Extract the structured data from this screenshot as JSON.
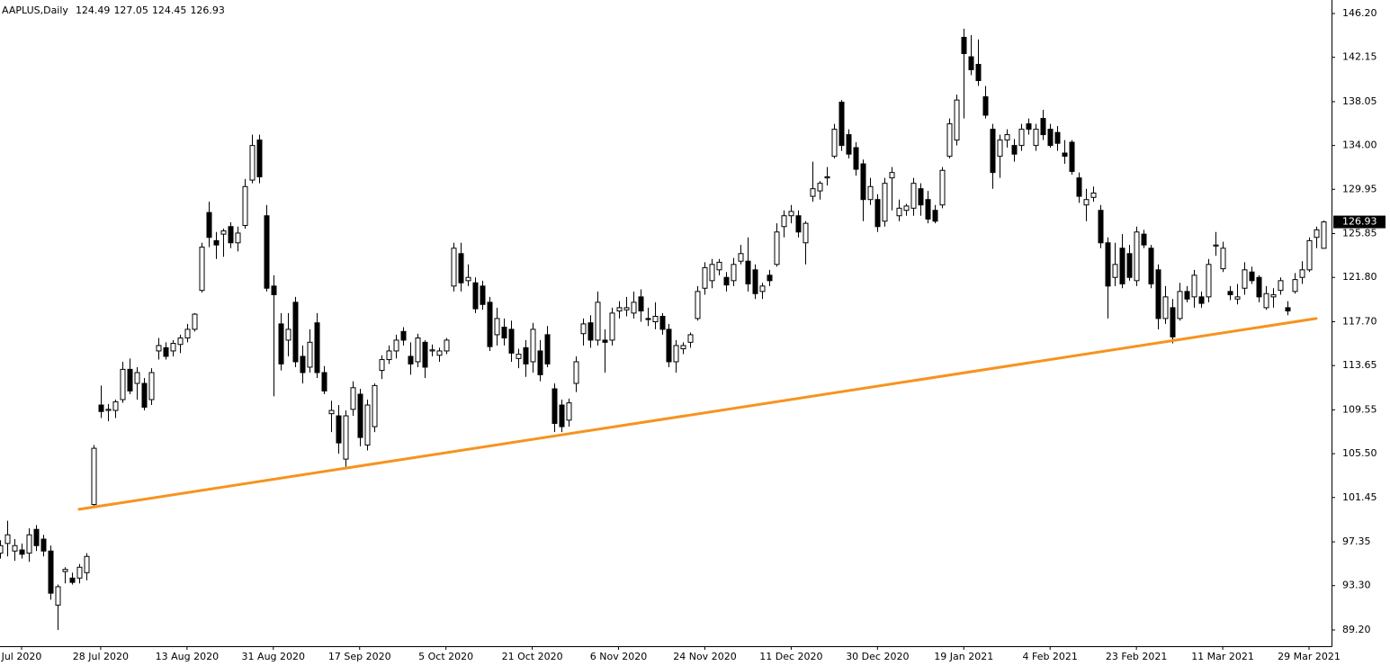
{
  "chart_data": {
    "type": "candlestick",
    "title": "AAPLUS,Daily",
    "categories": [
      null,
      null,
      null,
      "Jul 2020",
      null,
      null,
      null,
      null,
      null,
      null,
      null,
      null,
      null,
      null,
      "28 Jul 2020",
      null,
      null,
      null,
      null,
      null,
      null,
      null,
      null,
      null,
      null,
      null,
      "13 Aug 2020",
      null,
      null,
      null,
      null,
      null,
      null,
      null,
      null,
      null,
      null,
      null,
      "31 Aug 2020",
      null,
      null,
      null,
      null,
      null,
      null,
      null,
      null,
      null,
      null,
      null,
      "17 Sep 2020",
      null,
      null,
      null,
      null,
      null,
      null,
      null,
      null,
      null,
      null,
      null,
      "5 Oct 2020",
      null,
      null,
      null,
      null,
      null,
      null,
      null,
      null,
      null,
      null,
      null,
      "21 Oct 2020",
      null,
      null,
      null,
      null,
      null,
      null,
      null,
      null,
      null,
      null,
      null,
      "6 Nov 2020",
      null,
      null,
      null,
      null,
      null,
      null,
      null,
      null,
      null,
      null,
      null,
      "24 Nov 2020",
      null,
      null,
      null,
      null,
      null,
      null,
      null,
      null,
      null,
      null,
      null,
      "11 Dec 2020",
      null,
      null,
      null,
      null,
      null,
      null,
      null,
      null,
      null,
      null,
      null,
      "30 Dec 2020",
      null,
      null,
      null,
      null,
      null,
      null,
      null,
      null,
      null,
      null,
      null,
      "19 Jan 2021",
      null,
      null,
      null,
      null,
      null,
      null,
      null,
      null,
      null,
      null,
      null,
      "4 Feb 2021",
      null,
      null,
      null,
      null,
      null,
      null,
      null,
      null,
      null,
      null,
      null,
      "23 Feb 2021",
      null,
      null,
      null,
      null,
      null,
      null,
      null,
      null,
      null,
      null,
      null,
      "11 Mar 2021",
      null,
      null,
      null,
      null,
      null,
      null,
      null,
      null,
      null,
      null,
      null,
      "29 Mar 2021",
      null,
      null
    ],
    "open": [
      96.3,
      97.2,
      96.5,
      96.6,
      96.3,
      98.5,
      97.6,
      96.5,
      91.5,
      94.6,
      94.0,
      94.0,
      94.5,
      100.8,
      110.0,
      109.5,
      109.5,
      110.5,
      113.3,
      112.0,
      112.0,
      110.5,
      115.0,
      115.3,
      115.0,
      115.6,
      116.2,
      117.0,
      120.6,
      127.8,
      125.2,
      125.8,
      126.5,
      125.0,
      126.6,
      130.8,
      134.5,
      127.5,
      121.0,
      117.5,
      116.0,
      119.5,
      114.5,
      113.5,
      117.6,
      113.0,
      109.2,
      109.0,
      105.0,
      109.6,
      111.0,
      106.3,
      108.0,
      113.2,
      114.2,
      115.0,
      116.8,
      114.5,
      114.0,
      115.8,
      115.0,
      114.6,
      115.0,
      121.0,
      124.0,
      121.5,
      121.3,
      121.0,
      119.5,
      116.5,
      117.2,
      117.0,
      114.3,
      115.3,
      114.0,
      115.0,
      116.5,
      111.5,
      110.0,
      108.6,
      112.0,
      116.6,
      117.6,
      116.0,
      116.0,
      116.0,
      118.7,
      118.8,
      118.5,
      120.0,
      118.0,
      117.7,
      118.2,
      117.0,
      114.0,
      115.2,
      115.8,
      118.0,
      120.8,
      121.5,
      122.5,
      121.8,
      121.5,
      123.3,
      123.3,
      122.5,
      120.5,
      122.0,
      123.0,
      126.5,
      127.5,
      127.5,
      125.0,
      129.3,
      129.8,
      131.0,
      133.0,
      138.0,
      135.0,
      133.8,
      132.3,
      129.0,
      129.0,
      127.0,
      131.0,
      127.5,
      128.0,
      128.2,
      130.0,
      129.0,
      128.0,
      128.5,
      133.0,
      134.5,
      144.0,
      142.2,
      141.5,
      138.5,
      135.5,
      133.0,
      134.5,
      134.0,
      134.0,
      136.0,
      134.0,
      136.5,
      135.5,
      135.2,
      133.3,
      134.3,
      131.0,
      128.5,
      129.2,
      128.0,
      125.0,
      121.8,
      124.5,
      124.0,
      121.5,
      125.8,
      124.5,
      122.5,
      118.0,
      119.0,
      118.0,
      120.5,
      120.0,
      120.0,
      120.0,
      124.7,
      122.6,
      120.5,
      119.8,
      120.8,
      122.3,
      121.8,
      119.0,
      120.0,
      120.6,
      119.0,
      120.5,
      121.8,
      122.5,
      125.5,
      124.49
    ],
    "high": [
      97.5,
      99.3,
      97.6,
      97.2,
      98.6,
      98.9,
      98.0,
      97.0,
      93.4,
      95.0,
      94.5,
      95.3,
      96.3,
      106.3,
      111.8,
      110.1,
      110.5,
      114.0,
      114.3,
      113.5,
      112.5,
      113.4,
      116.2,
      115.8,
      116.0,
      116.5,
      117.5,
      118.5,
      125.0,
      128.8,
      126.0,
      126.3,
      126.9,
      126.5,
      130.9,
      135.0,
      135.0,
      128.5,
      122.0,
      118.5,
      118.5,
      120.0,
      115.5,
      117.0,
      118.5,
      113.6,
      110.4,
      110.0,
      109.5,
      112.2,
      111.5,
      110.5,
      112.0,
      114.6,
      115.5,
      116.5,
      117.2,
      115.8,
      116.6,
      116.0,
      115.6,
      115.3,
      116.2,
      125.0,
      125.0,
      123.0,
      121.8,
      121.5,
      120.0,
      119.0,
      118.0,
      117.8,
      115.2,
      116.0,
      117.6,
      116.0,
      117.3,
      112.0,
      110.5,
      110.6,
      114.5,
      118.0,
      118.3,
      120.5,
      117.0,
      119.0,
      119.6,
      120.0,
      120.5,
      120.7,
      119.0,
      119.5,
      118.5,
      117.5,
      116.0,
      115.8,
      116.7,
      121.0,
      123.2,
      123.5,
      123.5,
      122.3,
      123.6,
      124.8,
      125.5,
      123.0,
      121.3,
      122.5,
      126.8,
      128.0,
      128.5,
      128.0,
      127.0,
      132.5,
      130.7,
      132.0,
      136.0,
      138.2,
      135.5,
      134.3,
      132.7,
      131.0,
      129.5,
      131.0,
      132.0,
      129.0,
      128.6,
      131.0,
      130.5,
      129.8,
      128.5,
      132.0,
      136.5,
      138.7,
      144.8,
      144.2,
      143.8,
      139.5,
      136.0,
      135.0,
      135.5,
      134.6,
      136.0,
      136.5,
      136.0,
      137.3,
      136.0,
      135.8,
      134.5,
      134.5,
      131.5,
      130.0,
      130.2,
      128.5,
      125.5,
      125.0,
      125.8,
      124.8,
      126.5,
      126.2,
      124.8,
      123.0,
      121.0,
      119.8,
      121.3,
      121.0,
      122.5,
      120.5,
      123.5,
      126.0,
      125.1,
      121.0,
      121.2,
      123.2,
      122.8,
      122.0,
      121.0,
      120.8,
      121.8,
      119.6,
      122.2,
      123.3,
      125.5,
      126.5,
      127.05
    ],
    "low": [
      95.8,
      96.0,
      95.6,
      95.8,
      95.5,
      96.5,
      96.0,
      92.0,
      89.2,
      93.5,
      93.4,
      93.5,
      93.8,
      100.5,
      108.8,
      108.5,
      108.8,
      110.2,
      111.0,
      110.5,
      109.5,
      110.0,
      114.2,
      114.2,
      114.5,
      114.8,
      115.8,
      116.8,
      120.4,
      124.6,
      123.5,
      123.7,
      124.5,
      124.2,
      126.3,
      130.5,
      130.5,
      120.5,
      110.8,
      113.2,
      114.5,
      113.5,
      112.0,
      113.0,
      112.5,
      111.0,
      107.5,
      105.5,
      104.3,
      109.0,
      106.2,
      105.8,
      107.5,
      112.4,
      113.8,
      114.3,
      115.5,
      112.8,
      113.5,
      112.5,
      114.5,
      114.0,
      114.7,
      120.5,
      120.5,
      121.0,
      118.5,
      118.8,
      115.0,
      115.5,
      115.5,
      114.0,
      113.4,
      112.6,
      113.0,
      112.2,
      113.5,
      107.5,
      107.5,
      108.0,
      111.2,
      115.5,
      115.3,
      115.5,
      113.0,
      115.5,
      118.0,
      118.2,
      118.0,
      117.7,
      117.3,
      117.0,
      116.5,
      113.5,
      113.0,
      114.7,
      115.3,
      117.8,
      120.2,
      120.8,
      122.0,
      120.5,
      121.0,
      123.0,
      120.5,
      119.8,
      119.8,
      121.0,
      122.8,
      125.5,
      126.8,
      125.5,
      123.0,
      128.8,
      129.0,
      130.3,
      132.8,
      133.5,
      132.8,
      131.2,
      127.0,
      128.5,
      126.0,
      126.5,
      128.0,
      127.0,
      127.5,
      127.5,
      127.5,
      126.8,
      126.8,
      128.2,
      132.8,
      134.0,
      136.5,
      140.5,
      139.5,
      136.5,
      130.0,
      131.0,
      133.8,
      132.5,
      133.5,
      135.0,
      133.5,
      134.5,
      133.8,
      133.5,
      132.3,
      131.3,
      128.7,
      127.0,
      128.8,
      124.5,
      118.0,
      121.0,
      120.8,
      121.5,
      121.0,
      124.5,
      120.8,
      117.0,
      117.5,
      115.7,
      117.8,
      119.5,
      119.0,
      119.0,
      119.5,
      123.8,
      122.3,
      119.7,
      119.3,
      120.2,
      121.2,
      119.5,
      118.8,
      119.0,
      120.2,
      118.3,
      120.3,
      121.2,
      122.3,
      124.5,
      124.45
    ],
    "close": [
      97.0,
      98.0,
      97.0,
      96.2,
      98.0,
      97.0,
      96.5,
      92.6,
      93.2,
      94.8,
      93.6,
      95.0,
      96.0,
      106.0,
      109.4,
      109.6,
      110.3,
      113.3,
      111.3,
      113.0,
      109.8,
      113.0,
      115.5,
      114.5,
      115.7,
      116.2,
      117.0,
      118.4,
      124.6,
      125.5,
      124.8,
      126.1,
      125.0,
      125.9,
      130.2,
      134.0,
      131.1,
      120.8,
      120.2,
      113.8,
      117.0,
      114.0,
      113.0,
      115.8,
      113.0,
      111.3,
      109.5,
      106.5,
      109.0,
      111.6,
      107.0,
      110.0,
      111.8,
      114.2,
      115.0,
      116.0,
      116.0,
      113.8,
      116.2,
      113.5,
      115.1,
      115.0,
      116.0,
      124.5,
      121.3,
      121.8,
      118.9,
      119.3,
      115.4,
      118.0,
      116.2,
      114.8,
      114.7,
      113.8,
      117.0,
      112.8,
      113.8,
      108.3,
      108.0,
      110.2,
      114.0,
      117.5,
      116.0,
      119.5,
      115.8,
      118.5,
      119.0,
      119.0,
      119.5,
      118.7,
      117.9,
      118.2,
      117.0,
      114.0,
      115.5,
      115.5,
      116.5,
      120.5,
      122.7,
      123.0,
      123.2,
      121.1,
      123.0,
      124.0,
      121.2,
      120.3,
      121.0,
      121.5,
      126.0,
      127.5,
      127.9,
      126.0,
      126.8,
      130.0,
      130.5,
      131.1,
      135.5,
      134.0,
      133.2,
      131.8,
      129.0,
      130.2,
      126.5,
      130.5,
      131.5,
      128.2,
      128.4,
      130.5,
      128.5,
      127.2,
      127.0,
      131.7,
      136.0,
      138.2,
      142.5,
      141.0,
      140.0,
      136.8,
      131.5,
      134.5,
      135.0,
      133.2,
      135.5,
      135.5,
      135.5,
      135.0,
      134.0,
      134.2,
      133.0,
      131.6,
      129.3,
      129.0,
      129.6,
      125.0,
      121.0,
      123.0,
      121.2,
      121.8,
      126.0,
      124.8,
      121.2,
      118.0,
      120.0,
      116.3,
      120.5,
      119.8,
      122.0,
      119.4,
      123.0,
      124.8,
      124.5,
      120.2,
      120.0,
      122.5,
      121.5,
      120.0,
      120.3,
      120.2,
      121.5,
      118.7,
      121.6,
      122.5,
      125.2,
      126.2,
      126.93
    ],
    "up_color": "#ffffff",
    "down_color": "#000000",
    "ylim": [
      87.7,
      147.45
    ],
    "yticks": [
      {
        "value": 146.2,
        "label": "146.20"
      },
      142.15,
      138.05,
      {
        "value": 134,
        "label": "134.00"
      },
      129.95,
      125.85,
      {
        "value": 121.8,
        "label": "121.80"
      },
      {
        "value": 117.7,
        "label": "117.70"
      },
      113.65,
      109.55,
      {
        "value": 105.5,
        "label": "105.50"
      },
      101.45,
      97.35,
      {
        "value": 93.3,
        "label": "93.30"
      },
      {
        "value": 89.2,
        "label": "89.20"
      }
    ],
    "trendline": {
      "color": "#f7931e",
      "start": [
        11,
        100.36
      ],
      "end": [
        183,
        118.0
      ]
    }
  }
}
